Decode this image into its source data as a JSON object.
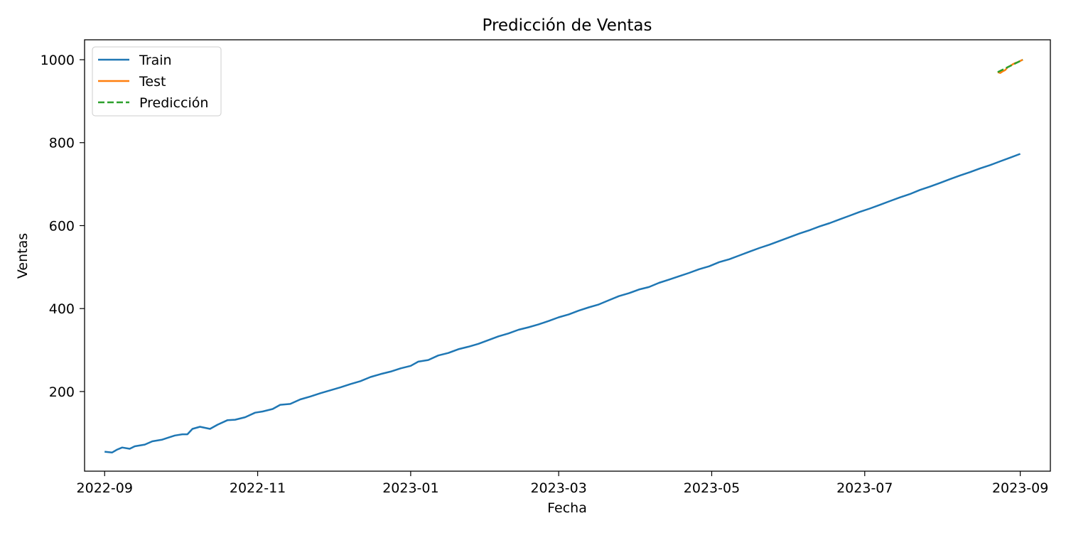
{
  "chart_data": {
    "type": "line",
    "title": "Predicción de Ventas",
    "xlabel": "Fecha",
    "ylabel": "Ventas",
    "x_range": [
      "2022-08-24",
      "2023-09-13"
    ],
    "ylim": [
      8,
      1048
    ],
    "x_ticks": [
      "2022-09",
      "2022-11",
      "2023-01",
      "2023-03",
      "2023-05",
      "2023-07",
      "2023-09"
    ],
    "y_ticks": [
      200,
      400,
      600,
      800,
      1000
    ],
    "grid": false,
    "legend_position": "top-left",
    "series": [
      {
        "name": "Train",
        "color": "#1f77b4",
        "style": "solid",
        "points": [
          [
            "2022-09-01",
            55
          ],
          [
            "2022-09-04",
            53
          ],
          [
            "2022-09-06",
            60
          ],
          [
            "2022-09-08",
            65
          ],
          [
            "2022-09-11",
            62
          ],
          [
            "2022-09-13",
            68
          ],
          [
            "2022-09-17",
            72
          ],
          [
            "2022-09-20",
            80
          ],
          [
            "2022-09-24",
            84
          ],
          [
            "2022-09-27",
            90
          ],
          [
            "2022-09-29",
            94
          ],
          [
            "2022-10-02",
            97
          ],
          [
            "2022-10-04",
            97
          ],
          [
            "2022-10-06",
            110
          ],
          [
            "2022-10-09",
            115
          ],
          [
            "2022-10-13",
            110
          ],
          [
            "2022-10-16",
            120
          ],
          [
            "2022-10-20",
            131
          ],
          [
            "2022-10-23",
            132
          ],
          [
            "2022-10-27",
            138
          ],
          [
            "2022-10-31",
            149
          ],
          [
            "2022-11-03",
            152
          ],
          [
            "2022-11-07",
            158
          ],
          [
            "2022-11-10",
            168
          ],
          [
            "2022-11-14",
            170
          ],
          [
            "2022-11-18",
            181
          ],
          [
            "2022-11-22",
            188
          ],
          [
            "2022-11-26",
            196
          ],
          [
            "2022-11-30",
            203
          ],
          [
            "2022-12-04",
            210
          ],
          [
            "2022-12-08",
            218
          ],
          [
            "2022-12-12",
            225
          ],
          [
            "2022-12-16",
            235
          ],
          [
            "2022-12-20",
            242
          ],
          [
            "2022-12-24",
            248
          ],
          [
            "2022-12-28",
            256
          ],
          [
            "2023-01-01",
            262
          ],
          [
            "2023-01-04",
            272
          ],
          [
            "2023-01-08",
            276
          ],
          [
            "2023-01-12",
            287
          ],
          [
            "2023-01-16",
            293
          ],
          [
            "2023-01-20",
            302
          ],
          [
            "2023-01-24",
            308
          ],
          [
            "2023-01-28",
            315
          ],
          [
            "2023-02-01",
            324
          ],
          [
            "2023-02-05",
            333
          ],
          [
            "2023-02-09",
            340
          ],
          [
            "2023-02-13",
            349
          ],
          [
            "2023-02-17",
            355
          ],
          [
            "2023-02-21",
            362
          ],
          [
            "2023-02-25",
            370
          ],
          [
            "2023-03-01",
            379
          ],
          [
            "2023-03-05",
            386
          ],
          [
            "2023-03-09",
            395
          ],
          [
            "2023-03-13",
            403
          ],
          [
            "2023-03-17",
            410
          ],
          [
            "2023-03-21",
            420
          ],
          [
            "2023-03-25",
            430
          ],
          [
            "2023-03-29",
            437
          ],
          [
            "2023-04-02",
            446
          ],
          [
            "2023-04-06",
            452
          ],
          [
            "2023-04-10",
            462
          ],
          [
            "2023-04-14",
            470
          ],
          [
            "2023-04-18",
            478
          ],
          [
            "2023-04-22",
            486
          ],
          [
            "2023-04-26",
            495
          ],
          [
            "2023-04-30",
            502
          ],
          [
            "2023-05-04",
            512
          ],
          [
            "2023-05-08",
            519
          ],
          [
            "2023-05-12",
            528
          ],
          [
            "2023-05-16",
            537
          ],
          [
            "2023-05-20",
            546
          ],
          [
            "2023-05-24",
            554
          ],
          [
            "2023-05-28",
            563
          ],
          [
            "2023-06-01",
            572
          ],
          [
            "2023-06-05",
            581
          ],
          [
            "2023-06-09",
            589
          ],
          [
            "2023-06-13",
            598
          ],
          [
            "2023-06-17",
            606
          ],
          [
            "2023-06-21",
            615
          ],
          [
            "2023-06-25",
            624
          ],
          [
            "2023-06-29",
            633
          ],
          [
            "2023-07-03",
            641
          ],
          [
            "2023-07-07",
            650
          ],
          [
            "2023-07-11",
            659
          ],
          [
            "2023-07-15",
            668
          ],
          [
            "2023-07-19",
            676
          ],
          [
            "2023-07-23",
            686
          ],
          [
            "2023-07-27",
            694
          ],
          [
            "2023-07-31",
            703
          ],
          [
            "2023-08-04",
            712
          ],
          [
            "2023-08-08",
            721
          ],
          [
            "2023-08-12",
            729
          ],
          [
            "2023-08-16",
            738
          ],
          [
            "2023-08-20",
            746
          ],
          [
            "2023-08-24",
            755
          ],
          [
            "2023-08-28",
            764
          ],
          [
            "2023-09-01",
            773
          ]
        ]
      },
      {
        "name": "Test",
        "color": "#ff7f0e",
        "style": "solid",
        "points": [
          [
            "2023-08-23",
            970
          ],
          [
            "2023-08-24",
            968
          ],
          [
            "2023-08-25",
            972
          ],
          [
            "2023-08-26",
            975
          ],
          [
            "2023-08-27",
            982
          ],
          [
            "2023-08-28",
            985
          ],
          [
            "2023-08-29",
            989
          ],
          [
            "2023-08-30",
            992
          ],
          [
            "2023-08-31",
            994
          ],
          [
            "2023-09-01",
            997
          ],
          [
            "2023-09-02",
            1000
          ]
        ]
      },
      {
        "name": "Predicción",
        "color": "#2ca02c",
        "style": "dashed",
        "points": [
          [
            "2023-08-23",
            970
          ],
          [
            "2023-09-02",
            1000
          ]
        ]
      }
    ]
  }
}
